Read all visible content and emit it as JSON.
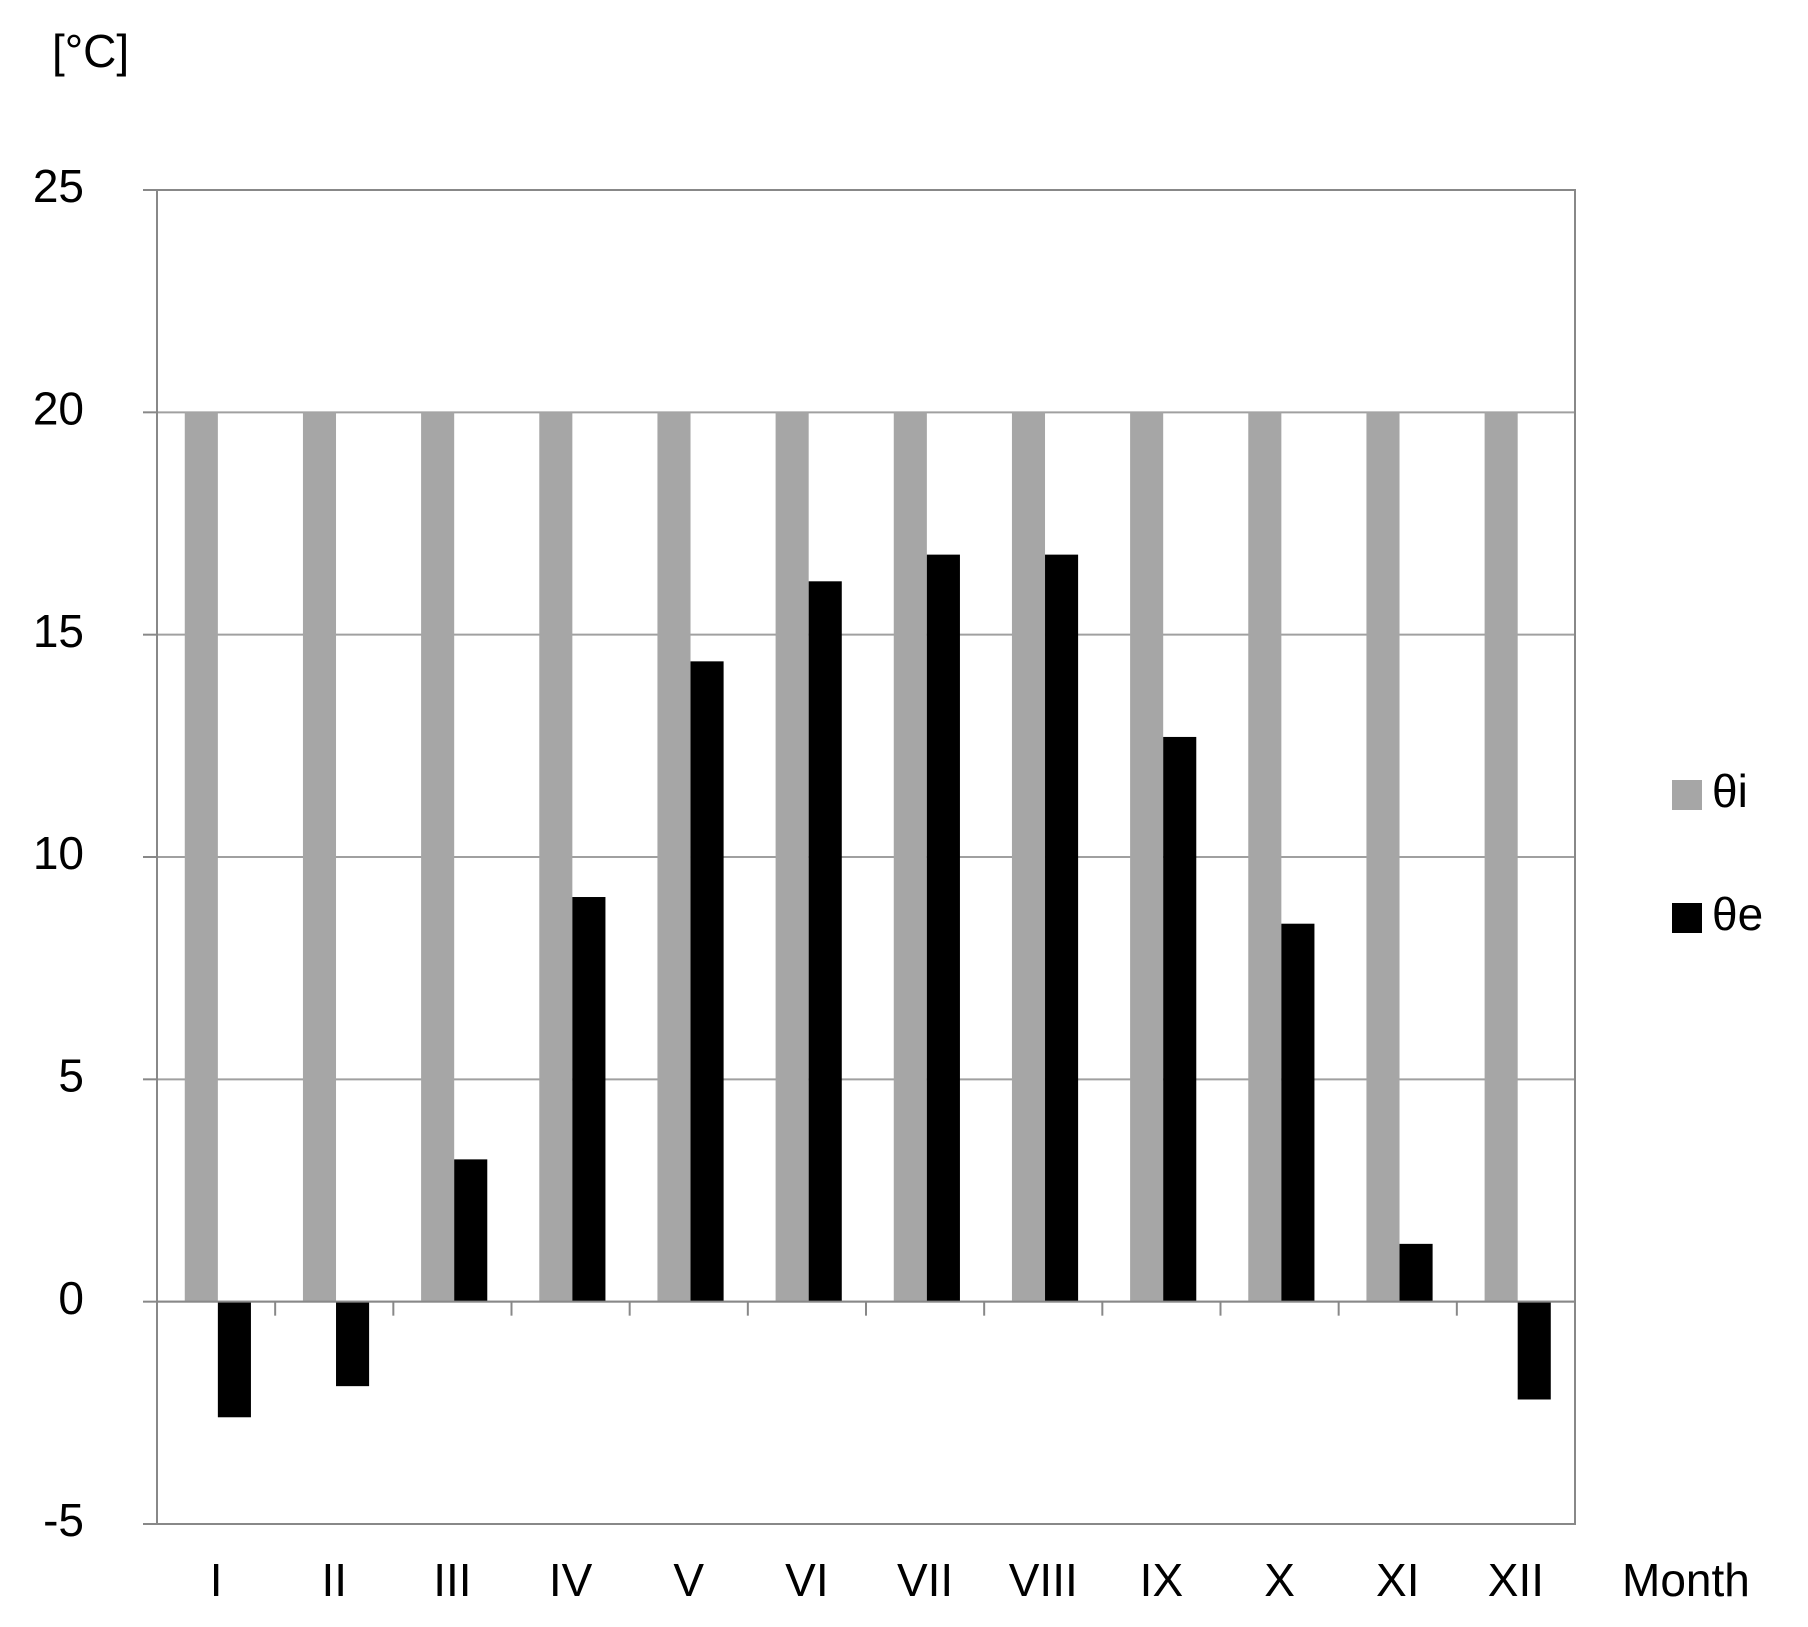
{
  "chart_data": {
    "type": "bar",
    "y_label": "[°C]",
    "x_label": "Month",
    "categories": [
      "I",
      "II",
      "III",
      "IV",
      "V",
      "VI",
      "VII",
      "VIII",
      "IX",
      "X",
      "XI",
      "XII"
    ],
    "series": [
      {
        "name": "θi",
        "color": "#a6a6a6",
        "values": [
          20,
          20,
          20,
          20,
          20,
          20,
          20,
          20,
          20,
          20,
          20,
          20
        ]
      },
      {
        "name": "θe",
        "color": "#000000",
        "values": [
          -2.6,
          -1.9,
          3.2,
          9.1,
          14.4,
          16.2,
          16.8,
          16.8,
          12.7,
          8.5,
          1.3,
          -2.2
        ]
      }
    ],
    "ylim": [
      -5,
      25
    ],
    "yticks": [
      -5,
      0,
      5,
      10,
      15,
      20,
      25
    ],
    "grid": true,
    "legend": "right"
  }
}
